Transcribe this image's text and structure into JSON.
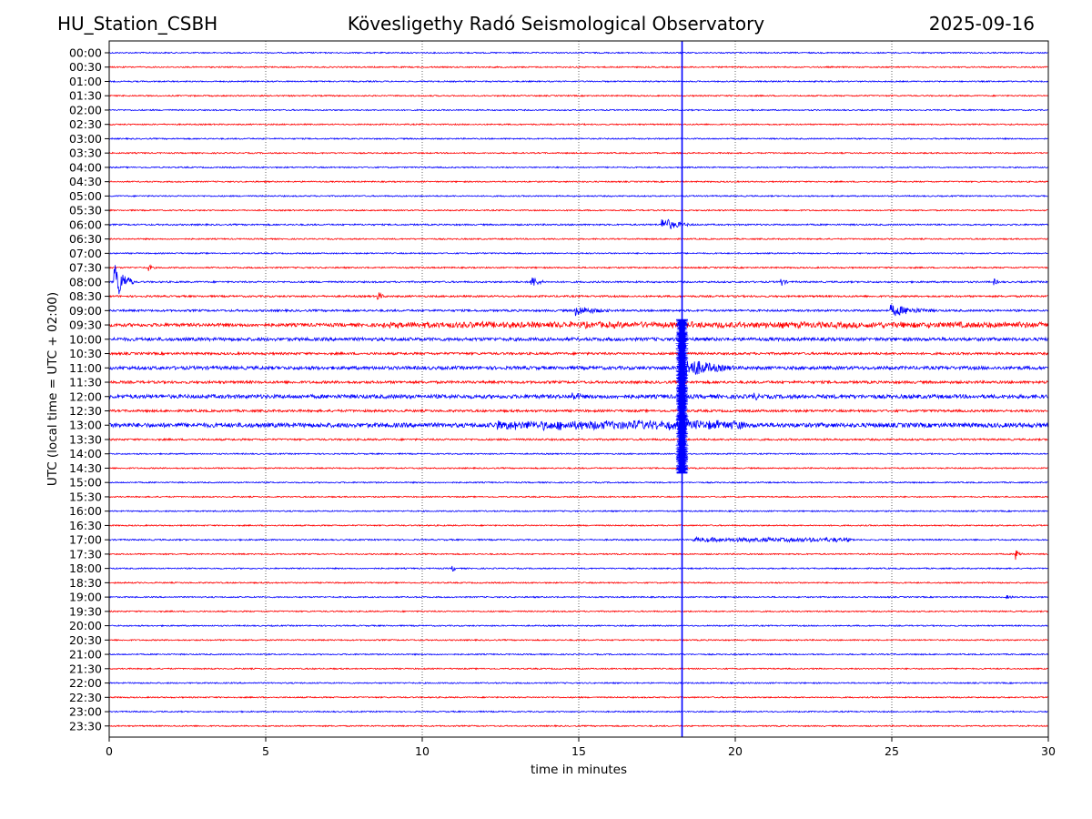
{
  "header": {
    "station": "HU_Station_CSBH",
    "title": "Kövesligethy Radó Seismological Observatory",
    "date": "2025-09-16"
  },
  "chart_data": {
    "type": "line",
    "title": "Kövesligethy Radó Seismological Observatory",
    "xlabel": "time in minutes",
    "ylabel": "UTC (local time = UTC + 02:00)",
    "xlim": [
      0,
      30
    ],
    "x_ticks": [
      0,
      5,
      10,
      15,
      20,
      25,
      30
    ],
    "grid": "vertical dotted at x ticks",
    "trace_colors": [
      "#0000ff",
      "#ff0000"
    ],
    "rows": [
      "00:00",
      "00:30",
      "01:00",
      "01:30",
      "02:00",
      "02:30",
      "03:00",
      "03:30",
      "04:00",
      "04:30",
      "05:00",
      "05:30",
      "06:00",
      "06:30",
      "07:00",
      "07:30",
      "08:00",
      "08:30",
      "09:00",
      "09:30",
      "10:00",
      "10:30",
      "11:00",
      "11:30",
      "12:00",
      "12:30",
      "13:00",
      "13:30",
      "14:00",
      "14:30",
      "15:00",
      "15:30",
      "16:00",
      "16:30",
      "17:00",
      "17:30",
      "18:00",
      "18:30",
      "19:00",
      "19:30",
      "20:00",
      "20:30",
      "21:00",
      "21:30",
      "22:00",
      "22:30",
      "23:00",
      "23:30"
    ],
    "noise_level": [
      1,
      1,
      1,
      1,
      1,
      1,
      1,
      1,
      1,
      1,
      1,
      1,
      1.2,
      1,
      1,
      1.1,
      1.3,
      1.4,
      1.6,
      2.6,
      2.6,
      1.8,
      2.6,
      2,
      3,
      1.8,
      3.4,
      1.4,
      1,
      1,
      1,
      1,
      1,
      1,
      1.1,
      1,
      1,
      1,
      1,
      1,
      1,
      1,
      1,
      1,
      1,
      1,
      1,
      1
    ],
    "events": [
      {
        "row": "06:00",
        "minute": 17.7,
        "amplitude": 8,
        "duration_min": 1.0
      },
      {
        "row": "07:30",
        "minute": 1.3,
        "amplitude": 3,
        "duration_min": 0.3
      },
      {
        "row": "08:00",
        "minute": 0.2,
        "amplitude": 22,
        "duration_min": 0.6
      },
      {
        "row": "08:00",
        "minute": 13.5,
        "amplitude": 7,
        "duration_min": 0.5
      },
      {
        "row": "08:00",
        "minute": 21.5,
        "amplitude": 4,
        "duration_min": 0.3
      },
      {
        "row": "08:00",
        "minute": 28.3,
        "amplitude": 3,
        "duration_min": 0.3
      },
      {
        "row": "08:30",
        "minute": 8.6,
        "amplitude": 5,
        "duration_min": 0.3
      },
      {
        "row": "09:00",
        "minute": 14.9,
        "amplitude": 6,
        "duration_min": 1.6
      },
      {
        "row": "09:00",
        "minute": 25.0,
        "amplitude": 7,
        "duration_min": 1.8
      },
      {
        "row": "09:30",
        "minute": 8.8,
        "amplitude": 4,
        "duration_min": 21
      },
      {
        "row": "11:00",
        "minute": 18.3,
        "amplitude": 14,
        "duration_min": 2.0
      },
      {
        "row": "12:00",
        "minute": 14.8,
        "amplitude": 5,
        "duration_min": 1.0
      },
      {
        "row": "12:00",
        "minute": 20.6,
        "amplitude": 5,
        "duration_min": 0.5
      },
      {
        "row": "13:00",
        "minute": 12.3,
        "amplitude": 6,
        "duration_min": 8
      },
      {
        "row": "17:00",
        "minute": 18.7,
        "amplitude": 3,
        "duration_min": 5
      },
      {
        "row": "17:30",
        "minute": 29.0,
        "amplitude": 5,
        "duration_min": 0.3
      },
      {
        "row": "18:00",
        "minute": 11.0,
        "amplitude": 3,
        "duration_min": 0.2
      },
      {
        "row": "19:00",
        "minute": 28.7,
        "amplitude": 2,
        "duration_min": 0.6
      }
    ],
    "vertical_marker": {
      "minute": 18.3,
      "color": "#0000ff",
      "dense_from_row": "09:30",
      "dense_to_row": "14:30"
    }
  }
}
